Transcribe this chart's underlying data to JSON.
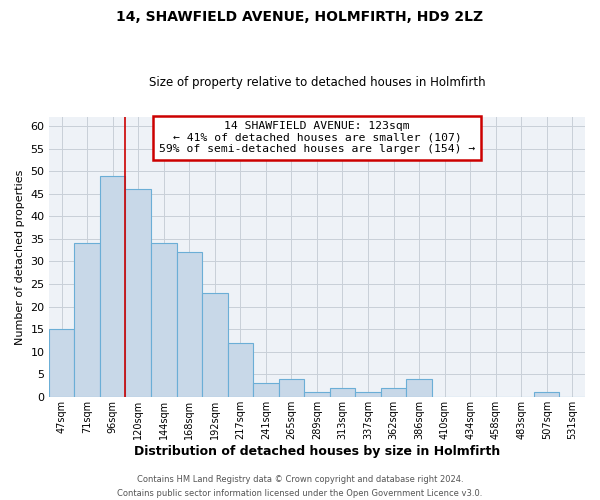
{
  "title": "14, SHAWFIELD AVENUE, HOLMFIRTH, HD9 2LZ",
  "subtitle": "Size of property relative to detached houses in Holmfirth",
  "xlabel": "Distribution of detached houses by size in Holmfirth",
  "ylabel": "Number of detached properties",
  "bar_color": "#c8d8e8",
  "bar_edge_color": "#6baed6",
  "annotation_box_title": "14 SHAWFIELD AVENUE: 123sqm",
  "annotation_line1": "← 41% of detached houses are smaller (107)",
  "annotation_line2": "59% of semi-detached houses are larger (154) →",
  "annotation_box_color": "#cc0000",
  "property_line_x": 3,
  "property_line_color": "#cc0000",
  "bin_labels": [
    "47sqm",
    "71sqm",
    "96sqm",
    "120sqm",
    "144sqm",
    "168sqm",
    "192sqm",
    "217sqm",
    "241sqm",
    "265sqm",
    "289sqm",
    "313sqm",
    "337sqm",
    "362sqm",
    "386sqm",
    "410sqm",
    "434sqm",
    "458sqm",
    "483sqm",
    "507sqm",
    "531sqm"
  ],
  "bar_values": [
    15,
    34,
    49,
    46,
    34,
    32,
    23,
    12,
    3,
    4,
    1,
    2,
    1,
    2,
    4,
    0,
    0,
    0,
    0,
    1,
    0
  ],
  "ylim": [
    0,
    62
  ],
  "yticks": [
    0,
    5,
    10,
    15,
    20,
    25,
    30,
    35,
    40,
    45,
    50,
    55,
    60
  ],
  "background_color": "#eef2f7",
  "grid_color": "#c8cfd8",
  "footer_line1": "Contains HM Land Registry data © Crown copyright and database right 2024.",
  "footer_line2": "Contains public sector information licensed under the Open Government Licence v3.0."
}
